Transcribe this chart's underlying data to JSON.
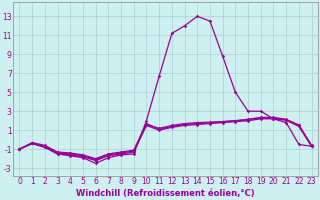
{
  "x": [
    0,
    1,
    2,
    3,
    4,
    5,
    6,
    7,
    8,
    9,
    10,
    11,
    12,
    13,
    14,
    15,
    16,
    17,
    18,
    19,
    20,
    21,
    22,
    23
  ],
  "line1": [
    -1.0,
    -0.4,
    -0.8,
    -1.5,
    -1.7,
    -1.9,
    -2.5,
    -1.9,
    -1.6,
    -1.5,
    2.0,
    6.7,
    11.2,
    12.0,
    13.0,
    12.5,
    8.8,
    5.0,
    3.0,
    3.0,
    2.2,
    1.8,
    -0.5,
    -0.7
  ],
  "line2": [
    -1.0,
    -0.4,
    -0.7,
    -1.4,
    -1.5,
    -1.7,
    -2.1,
    -1.6,
    -1.4,
    -1.2,
    1.6,
    1.2,
    1.5,
    1.7,
    1.8,
    1.85,
    1.9,
    2.0,
    2.1,
    2.3,
    2.3,
    2.1,
    1.5,
    -0.65
  ],
  "line3": [
    -1.0,
    -0.4,
    -0.8,
    -1.5,
    -1.6,
    -1.8,
    -2.2,
    -1.7,
    -1.5,
    -1.3,
    1.5,
    1.0,
    1.3,
    1.5,
    1.6,
    1.7,
    1.8,
    1.9,
    2.0,
    2.2,
    2.2,
    2.05,
    1.4,
    -0.7
  ],
  "line4": [
    -1.0,
    -0.3,
    -0.6,
    -1.3,
    -1.4,
    -1.6,
    -2.0,
    -1.5,
    -1.3,
    -1.1,
    1.7,
    1.1,
    1.4,
    1.6,
    1.7,
    1.8,
    1.9,
    2.0,
    2.15,
    2.35,
    2.35,
    2.15,
    1.55,
    -0.6
  ],
  "line_color": "#990099",
  "bg_color": "#cff0f0",
  "grid_color": "#aacece",
  "xlabel": "Windchill (Refroidissement éolien,°C)",
  "ylabel_ticks": [
    -3,
    -1,
    1,
    3,
    5,
    7,
    9,
    11,
    13
  ],
  "xlim": [
    -0.5,
    23.5
  ],
  "ylim": [
    -3.8,
    14.5
  ],
  "xlabel_fontsize": 6.0,
  "tick_fontsize": 5.5,
  "line_width": 0.9,
  "marker_size": 1.8
}
